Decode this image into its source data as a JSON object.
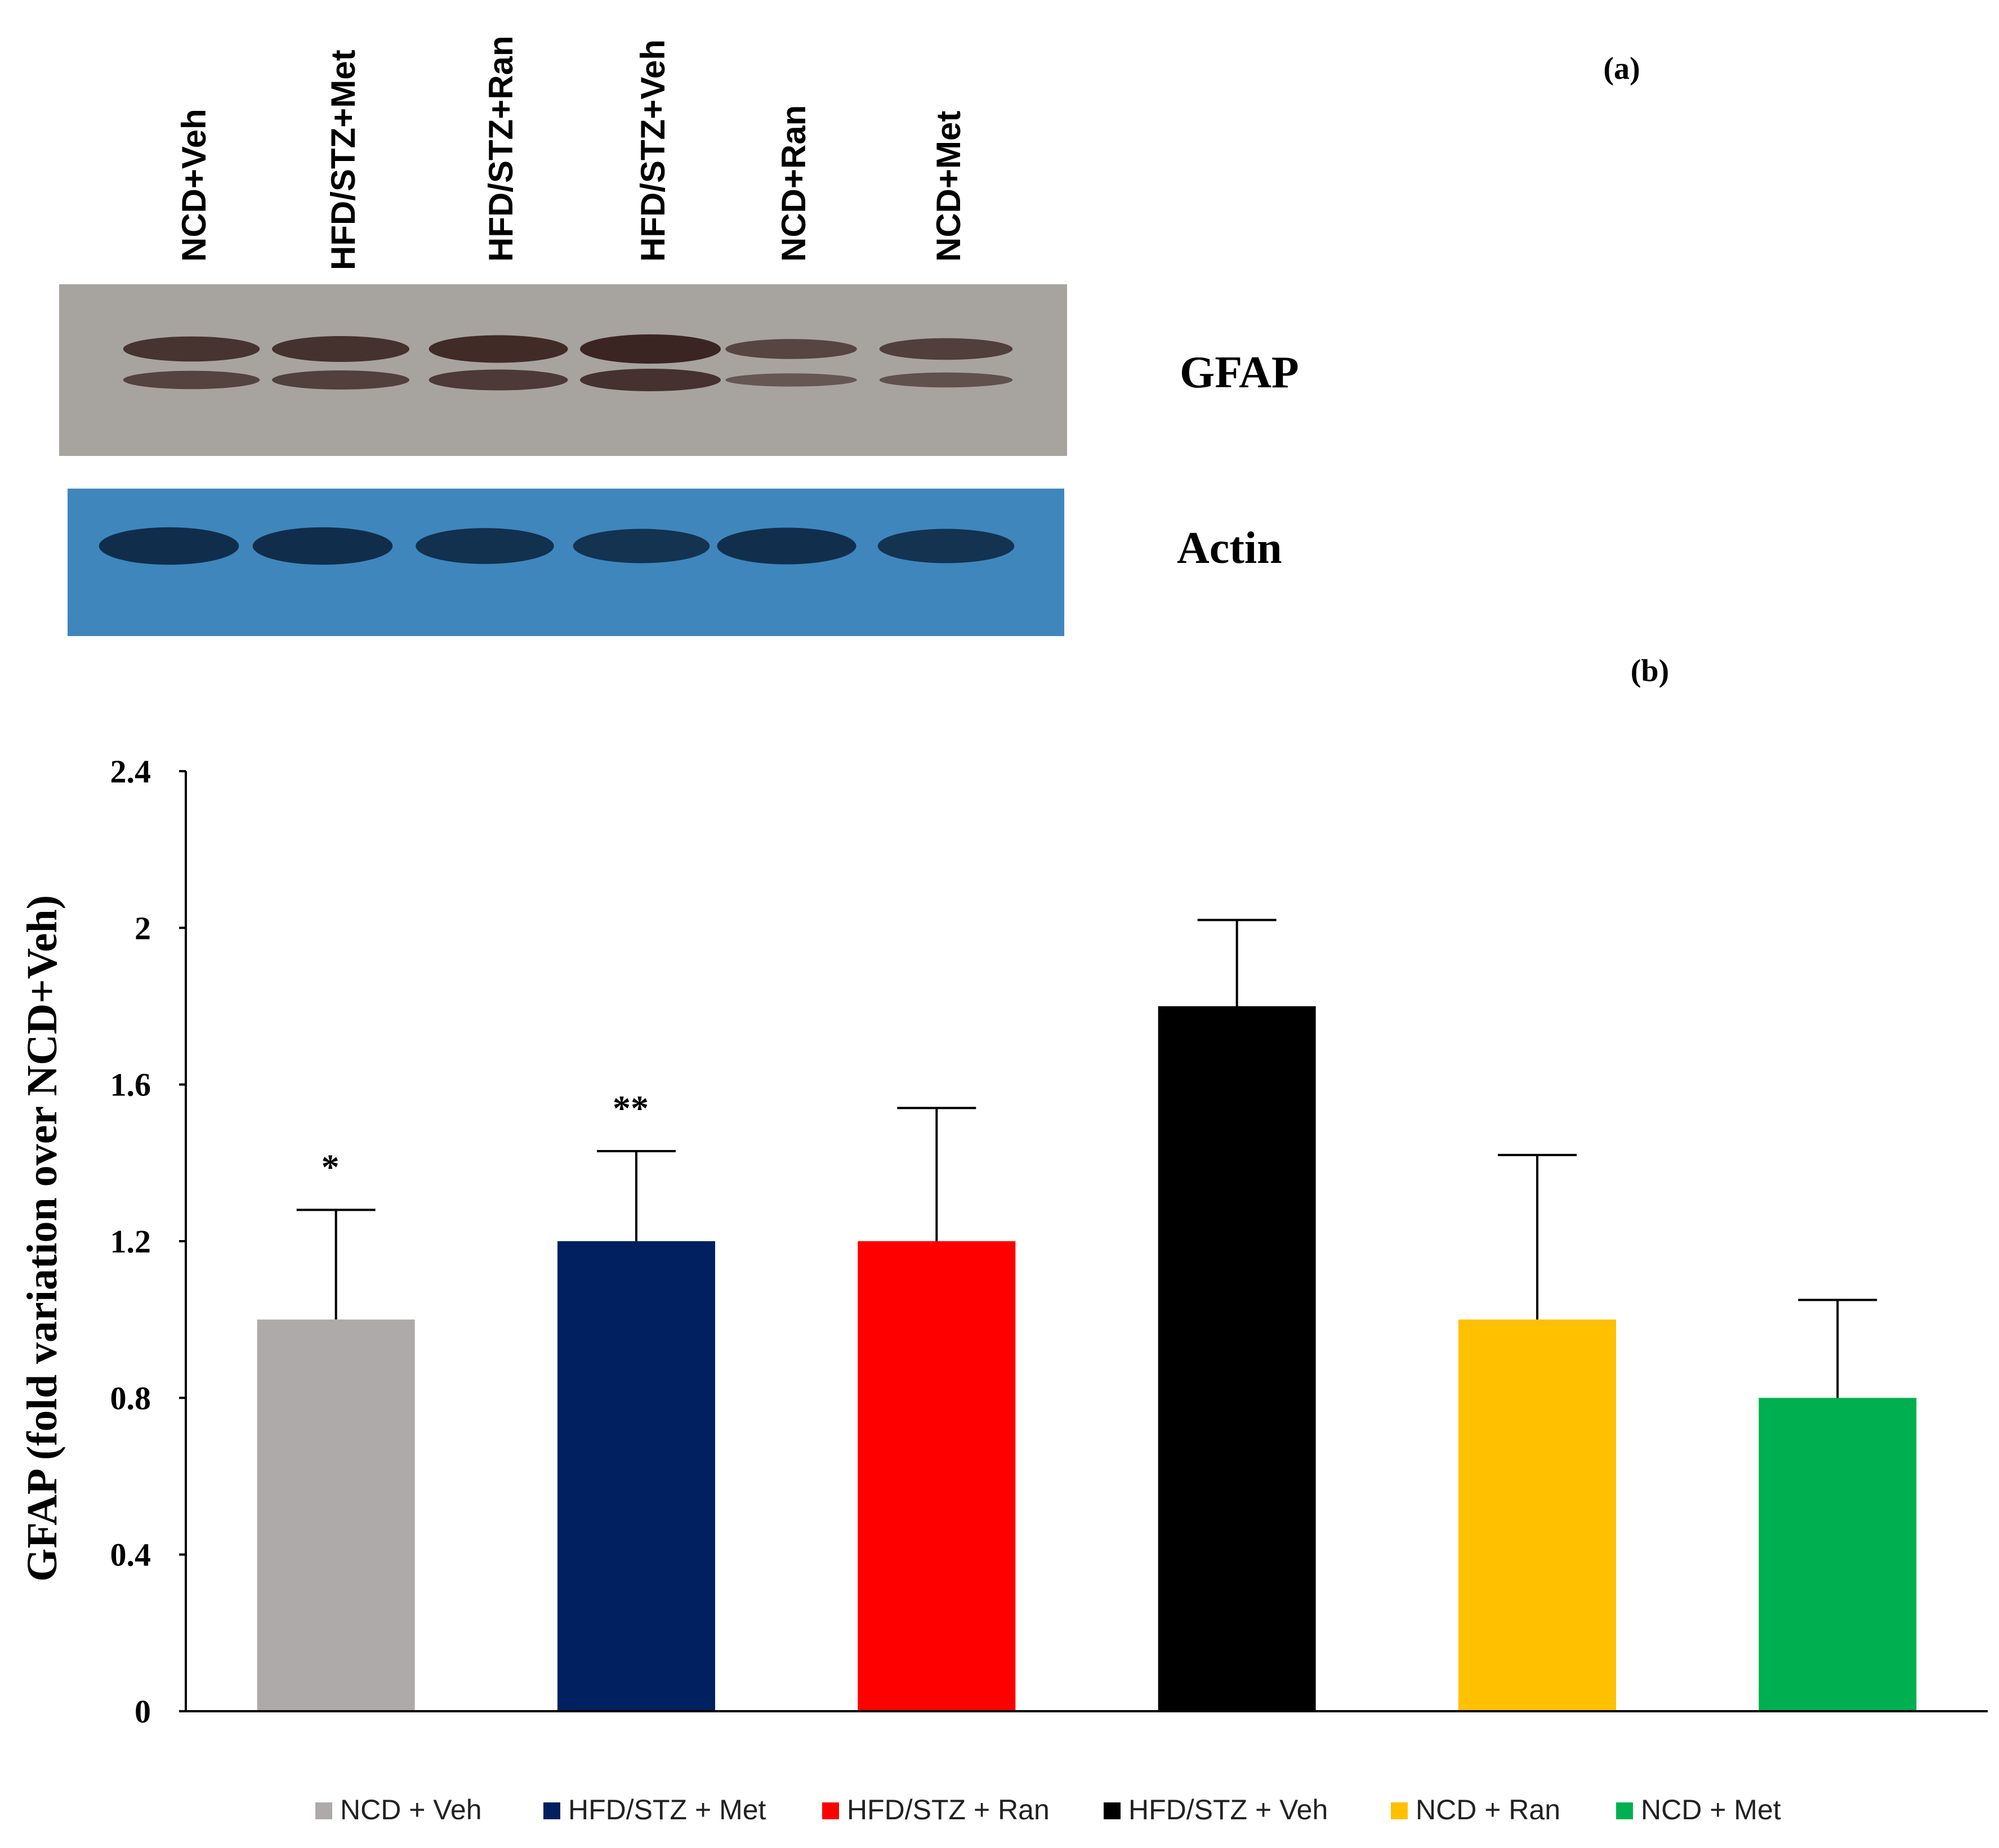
{
  "panel_a": {
    "label": "(a)",
    "lane_labels": [
      "NCD+Veh",
      "HFD/STZ+Met",
      "HFD/STZ+Ran",
      "HFD/STZ+Veh",
      "NCD+Ran",
      "NCD+Met"
    ],
    "blot_labels": {
      "gfap": "GFAP",
      "actin": "Actin"
    },
    "gfap_band_intensity": [
      0.75,
      0.8,
      0.9,
      1.0,
      0.45,
      0.55
    ],
    "actin_band_intensity": [
      0.95,
      0.95,
      0.85,
      0.75,
      0.9,
      0.75
    ],
    "colors": {
      "gfap_membrane": "#a7a49f",
      "gfap_band": "#3b2522",
      "actin_membrane": "#3f86bd",
      "actin_band": "#0f2c48"
    }
  },
  "panel_b": {
    "label": "(b)"
  },
  "chart_data": {
    "type": "bar",
    "categories": [
      "NCD + Veh",
      "HFD/STZ + Met",
      "HFD/STZ + Ran",
      "HFD/STZ + Veh",
      "NCD + Ran",
      "NCD + Met"
    ],
    "values": [
      1.0,
      1.2,
      1.2,
      1.8,
      1.0,
      0.8
    ],
    "error_upper": [
      0.28,
      0.23,
      0.34,
      0.22,
      0.42,
      0.25
    ],
    "annotations": [
      "*",
      "**",
      "",
      "",
      "",
      ""
    ],
    "colors": [
      "#aeaaaa",
      "#002060",
      "#ff0000",
      "#000000",
      "#ffc000",
      "#00b050"
    ],
    "ylabel": "GFAP (fold variation over NCD+Veh)",
    "ylim": [
      0,
      2.4
    ],
    "yticks": [
      "0",
      "0.4",
      "0.8",
      "1.2",
      "1.6",
      "2",
      "2.4"
    ],
    "grid": false,
    "legend_position": "bottom"
  }
}
